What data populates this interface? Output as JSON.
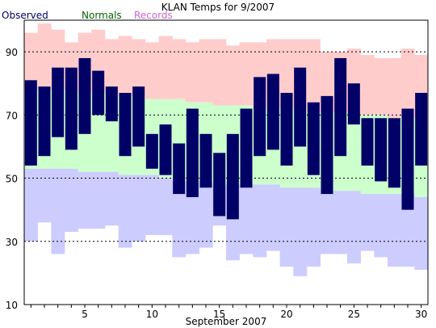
{
  "chart_data": {
    "type": "bar",
    "title": "KLAN Temps for 9/2007",
    "xlabel": "September 2007",
    "ylabel": "",
    "xlim": [
      0.5,
      30.5
    ],
    "ylim": [
      10,
      100
    ],
    "yticks": [
      10,
      30,
      50,
      70,
      90
    ],
    "xticks": [
      5,
      10,
      15,
      20,
      25,
      30
    ],
    "grid": "dotted horizontal at 30, 50, 70, 90",
    "legend_placement": "top-left",
    "days": [
      1,
      2,
      3,
      4,
      5,
      6,
      7,
      8,
      9,
      10,
      11,
      12,
      13,
      14,
      15,
      16,
      17,
      18,
      19,
      20,
      21,
      22,
      23,
      24,
      25,
      26,
      27,
      28,
      29,
      30
    ],
    "series": [
      {
        "name": "Records",
        "color": "#ffcccc",
        "high": [
          96,
          99,
          97,
          93,
          96,
          97,
          94,
          95,
          94,
          93,
          95,
          94,
          93,
          94,
          94,
          92,
          93,
          93,
          94,
          94,
          94,
          94,
          90,
          90,
          91,
          89,
          88,
          88,
          91,
          89
        ],
        "low": [
          30,
          36,
          26,
          33,
          34,
          34,
          35,
          28,
          30,
          32,
          32,
          25,
          26,
          28,
          35,
          24,
          26,
          25,
          27,
          22,
          19,
          22,
          26,
          26,
          23,
          27,
          25,
          22,
          22,
          21
        ]
      },
      {
        "name": "Normals",
        "color": "#ccffcc",
        "low_color": "#ccccff",
        "high": [
          78,
          78,
          78,
          78,
          77,
          77,
          77,
          76,
          76,
          75,
          75,
          75,
          74,
          74,
          73,
          73,
          73,
          72,
          72,
          72,
          72,
          71,
          71,
          71,
          70,
          70,
          70,
          69,
          69,
          69
        ],
        "low": [
          53,
          53,
          53,
          53,
          52,
          52,
          52,
          51,
          51,
          51,
          50,
          49,
          49,
          49,
          48,
          48,
          48,
          48,
          48,
          47,
          47,
          47,
          46,
          46,
          46,
          45,
          45,
          45,
          45,
          44
        ]
      },
      {
        "name": "Observed",
        "color": "#000066",
        "high": [
          81,
          79,
          85,
          85,
          88,
          84,
          79,
          77,
          79,
          64,
          67,
          61,
          72,
          64,
          58,
          64,
          72,
          82,
          83,
          77,
          85,
          74,
          76,
          88,
          80,
          69,
          69,
          69,
          72,
          77
        ],
        "low": [
          54,
          57,
          63,
          59,
          64,
          70,
          68,
          57,
          60,
          53,
          51,
          45,
          44,
          47,
          38,
          37,
          47,
          57,
          59,
          54,
          60,
          51,
          45,
          57,
          67,
          54,
          49,
          47,
          40,
          54
        ]
      }
    ]
  },
  "colors": {
    "observed_legend": "#000066",
    "normals_legend": "#006600",
    "records_legend": "#cc66cc",
    "grid": "#000000",
    "axis": "#000000"
  }
}
